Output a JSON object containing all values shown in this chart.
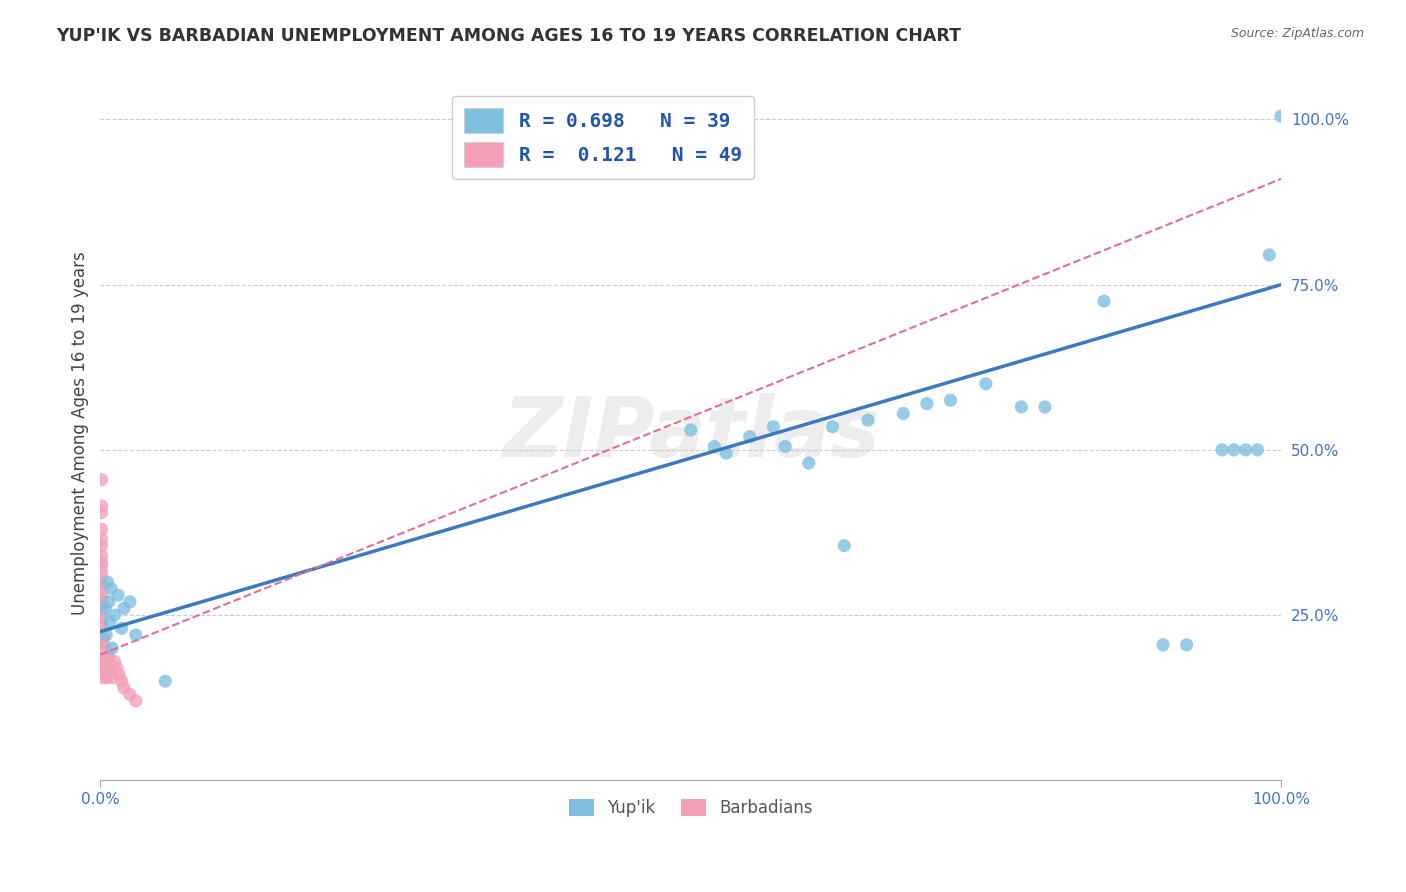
{
  "title": "YUP'IK VS BARBADIAN UNEMPLOYMENT AMONG AGES 16 TO 19 YEARS CORRELATION CHART",
  "source": "Source: ZipAtlas.com",
  "ylabel": "Unemployment Among Ages 16 to 19 years",
  "xlim": [
    0.0,
    1.0
  ],
  "ylim": [
    0.0,
    1.05
  ],
  "xtick_labels": [
    "0.0%",
    "100.0%"
  ],
  "ytick_labels": [
    "25.0%",
    "50.0%",
    "75.0%",
    "100.0%"
  ],
  "ytick_positions": [
    0.25,
    0.5,
    0.75,
    1.0
  ],
  "grid_color": "#cccccc",
  "background_color": "#ffffff",
  "watermark": "ZIPatlas",
  "legend_r1": "R = 0.698",
  "legend_n1": "N = 39",
  "legend_r2": "R =  0.121",
  "legend_n2": "N = 49",
  "yupik_color": "#7fbfdf",
  "barbadian_color": "#f4a0b8",
  "line_color_yupik": "#3a7abf",
  "line_color_barbadian": "#e07090",
  "dot_size": 90,
  "yupik_line_intercept": 0.225,
  "yupik_line_slope": 0.525,
  "barbadian_line_intercept": 0.19,
  "barbadian_line_slope": 0.72,
  "yupik_points": [
    [
      0.004,
      0.26
    ],
    [
      0.005,
      0.22
    ],
    [
      0.006,
      0.3
    ],
    [
      0.007,
      0.27
    ],
    [
      0.008,
      0.24
    ],
    [
      0.009,
      0.29
    ],
    [
      0.01,
      0.2
    ],
    [
      0.012,
      0.25
    ],
    [
      0.015,
      0.28
    ],
    [
      0.018,
      0.23
    ],
    [
      0.02,
      0.26
    ],
    [
      0.025,
      0.27
    ],
    [
      0.03,
      0.22
    ],
    [
      0.055,
      0.15
    ],
    [
      0.5,
      0.53
    ],
    [
      0.52,
      0.505
    ],
    [
      0.53,
      0.495
    ],
    [
      0.55,
      0.52
    ],
    [
      0.57,
      0.535
    ],
    [
      0.58,
      0.505
    ],
    [
      0.6,
      0.48
    ],
    [
      0.62,
      0.535
    ],
    [
      0.63,
      0.355
    ],
    [
      0.65,
      0.545
    ],
    [
      0.68,
      0.555
    ],
    [
      0.7,
      0.57
    ],
    [
      0.72,
      0.575
    ],
    [
      0.75,
      0.6
    ],
    [
      0.78,
      0.565
    ],
    [
      0.8,
      0.565
    ],
    [
      0.85,
      0.725
    ],
    [
      0.9,
      0.205
    ],
    [
      0.92,
      0.205
    ],
    [
      0.95,
      0.5
    ],
    [
      0.96,
      0.5
    ],
    [
      0.97,
      0.5
    ],
    [
      0.98,
      0.5
    ],
    [
      0.99,
      0.795
    ],
    [
      1.0,
      1.005
    ]
  ],
  "barbadian_points": [
    [
      0.001,
      0.455
    ],
    [
      0.001,
      0.415
    ],
    [
      0.001,
      0.405
    ],
    [
      0.001,
      0.38
    ],
    [
      0.001,
      0.365
    ],
    [
      0.001,
      0.355
    ],
    [
      0.001,
      0.34
    ],
    [
      0.001,
      0.33
    ],
    [
      0.001,
      0.325
    ],
    [
      0.001,
      0.315
    ],
    [
      0.001,
      0.305
    ],
    [
      0.001,
      0.295
    ],
    [
      0.001,
      0.285
    ],
    [
      0.001,
      0.275
    ],
    [
      0.001,
      0.265
    ],
    [
      0.001,
      0.255
    ],
    [
      0.001,
      0.245
    ],
    [
      0.001,
      0.235
    ],
    [
      0.001,
      0.225
    ],
    [
      0.001,
      0.215
    ],
    [
      0.001,
      0.205
    ],
    [
      0.001,
      0.195
    ],
    [
      0.001,
      0.185
    ],
    [
      0.001,
      0.175
    ],
    [
      0.002,
      0.165
    ],
    [
      0.002,
      0.155
    ],
    [
      0.002,
      0.2
    ],
    [
      0.002,
      0.19
    ],
    [
      0.003,
      0.18
    ],
    [
      0.003,
      0.17
    ],
    [
      0.003,
      0.215
    ],
    [
      0.003,
      0.205
    ],
    [
      0.004,
      0.195
    ],
    [
      0.004,
      0.185
    ],
    [
      0.004,
      0.175
    ],
    [
      0.005,
      0.165
    ],
    [
      0.005,
      0.155
    ],
    [
      0.006,
      0.195
    ],
    [
      0.007,
      0.185
    ],
    [
      0.008,
      0.175
    ],
    [
      0.009,
      0.165
    ],
    [
      0.01,
      0.155
    ],
    [
      0.012,
      0.18
    ],
    [
      0.014,
      0.17
    ],
    [
      0.016,
      0.16
    ],
    [
      0.018,
      0.15
    ],
    [
      0.02,
      0.14
    ],
    [
      0.025,
      0.13
    ],
    [
      0.03,
      0.12
    ]
  ]
}
